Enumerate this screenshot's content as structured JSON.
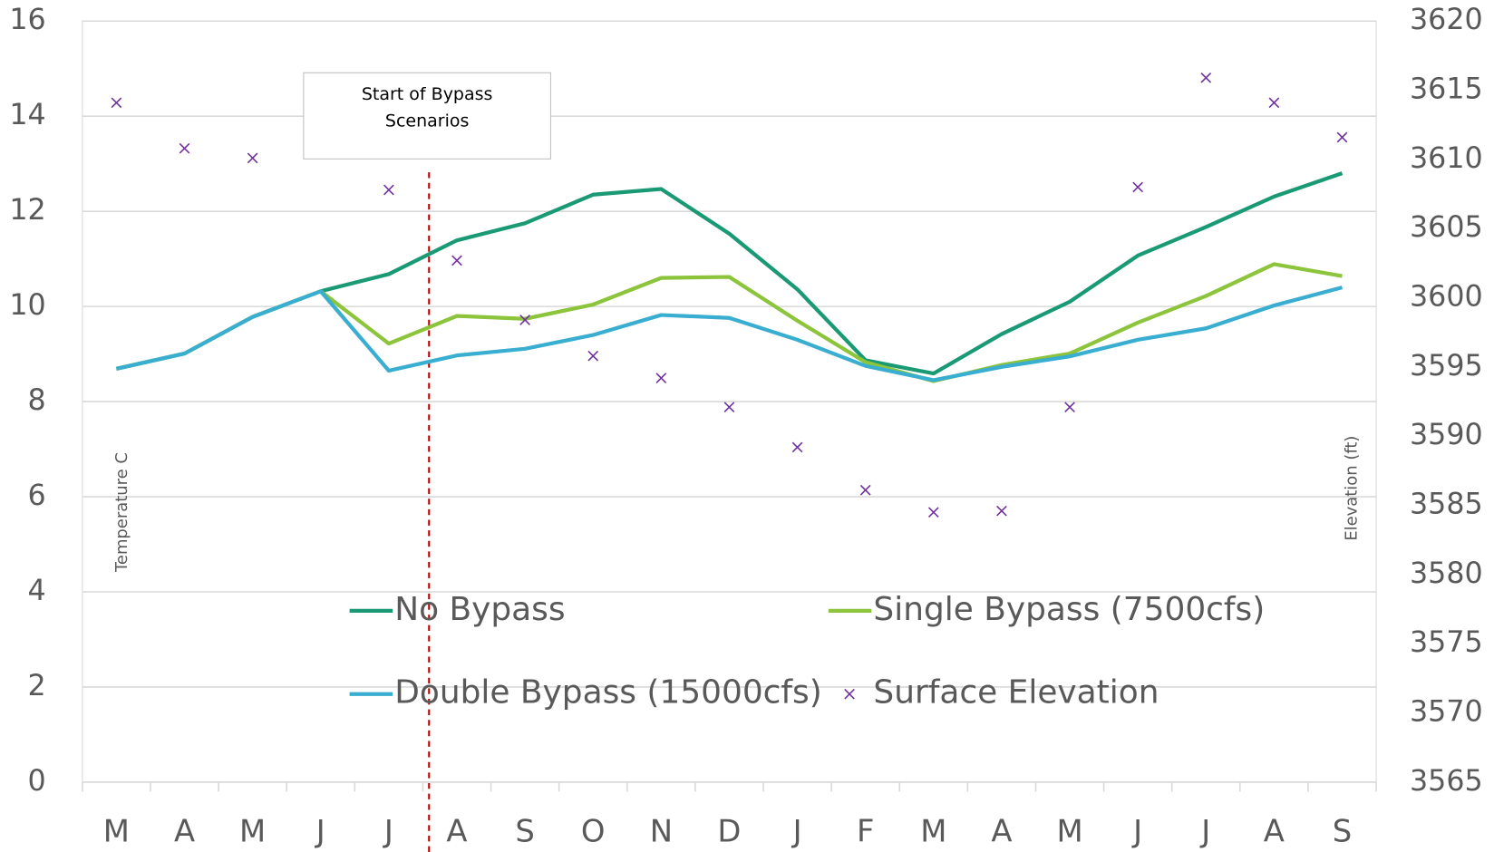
{
  "chart_data": {
    "type": "line",
    "categories": [
      "M",
      "A",
      "M",
      "J",
      "J",
      "A",
      "S",
      "O",
      "N",
      "D",
      "J",
      "F",
      "M",
      "A",
      "M",
      "J",
      "J",
      "A",
      "S"
    ],
    "series": [
      {
        "name": "No Bypass",
        "color": "#1a9a74",
        "values": [
          8.69,
          9.01,
          9.78,
          10.32,
          10.68,
          11.39,
          11.75,
          12.35,
          12.47,
          11.53,
          10.36,
          8.87,
          8.59,
          9.42,
          10.1,
          11.07,
          11.67,
          12.31,
          12.8
        ]
      },
      {
        "name": "Single Bypass (7500cfs)",
        "color": "#8cc43c",
        "values": [
          8.69,
          9.01,
          9.78,
          10.32,
          9.22,
          9.8,
          9.74,
          10.04,
          10.6,
          10.62,
          9.7,
          8.83,
          8.43,
          8.77,
          9.01,
          9.66,
          10.22,
          10.89,
          10.64
        ]
      },
      {
        "name": "Double Bypass (15000cfs)",
        "color": "#3aaed0",
        "values": [
          8.69,
          9.01,
          9.78,
          10.32,
          8.65,
          8.97,
          9.11,
          9.4,
          9.82,
          9.76,
          9.3,
          8.75,
          8.45,
          8.73,
          8.95,
          9.3,
          9.54,
          10.02,
          10.4
        ]
      },
      {
        "name": "Surface Elevation",
        "color": "#7030a0",
        "type": "scatter",
        "axis": "y2",
        "values": [
          3614.1,
          3610.8,
          3610.1,
          null,
          3607.8,
          3602.7,
          3598.4,
          3595.8,
          3594.2,
          3592.1,
          3589.2,
          3586.1,
          3584.5,
          3584.6,
          3592.1,
          3608.0,
          3615.9,
          3614.1,
          3611.6
        ]
      }
    ],
    "ylabel": "Temperature C",
    "y2label": "Elevation (ft)",
    "ylim": [
      0,
      16
    ],
    "yticks": [
      0,
      2,
      4,
      6,
      8,
      10,
      12,
      14,
      16
    ],
    "y2lim": [
      3565,
      3620
    ],
    "y2ticks": [
      3565,
      3570,
      3575,
      3580,
      3585,
      3590,
      3595,
      3600,
      3605,
      3610,
      3615,
      3620
    ],
    "grid": true,
    "annotation": [
      "Start of Bypass",
      "Scenarios"
    ]
  }
}
